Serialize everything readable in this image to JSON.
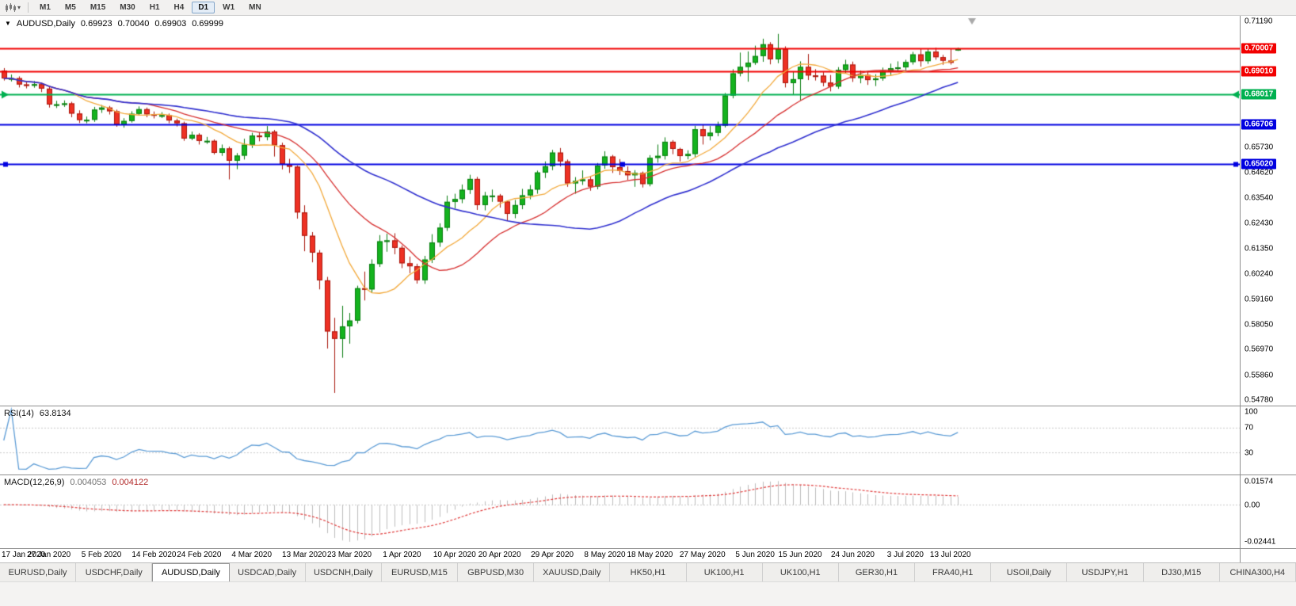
{
  "toolbar": {
    "timeframes": [
      "M1",
      "M5",
      "M15",
      "M30",
      "H1",
      "H4",
      "D1",
      "W1",
      "MN"
    ],
    "active_timeframe": "D1",
    "caret_glyph": "▾"
  },
  "chart_header": {
    "marker_glyph": "▼",
    "symbol": "AUDUSD,Daily",
    "open": "0.69923",
    "high": "0.70040",
    "low": "0.69903",
    "close": "0.69999"
  },
  "rsi": {
    "name": "RSI(14)",
    "value": "63.8134",
    "axis_labels": [
      "100",
      "70",
      "30"
    ],
    "axis_values": [
      100,
      70,
      30
    ]
  },
  "macd": {
    "name": "MACD(12,26,9)",
    "value_main": "0.004053",
    "value_signal": "0.004122",
    "axis_top": "0.01574",
    "axis_zero": "0.00",
    "axis_bottom": "-0.02441"
  },
  "tabs": {
    "items": [
      "EURUSD,Daily",
      "USDCHF,Daily",
      "AUDUSD,Daily",
      "USDCAD,Daily",
      "USDCNH,Daily",
      "EURUSD,M15",
      "GBPUSD,M30",
      "XAUUSD,Daily",
      "HK50,H1",
      "UK100,H1",
      "UK100,H1",
      "GER30,H1",
      "FRA40,H1",
      "USOil,Daily",
      "USDJPY,H1",
      "DJ30,M15",
      "CHINA300,H4"
    ],
    "active_index": 2,
    "active": "AUDUSD,Daily"
  },
  "chart_data": {
    "type": "candlestick",
    "title": "AUDUSD,Daily",
    "timeframe": "D1",
    "ylim": [
      0.5455,
      0.7142
    ],
    "plot_right_fraction": 0.775,
    "price_ticks": [
      {
        "price": 0.7119,
        "label": "0.71190"
      },
      {
        "price": 0.6573,
        "label": "0.65730"
      },
      {
        "price": 0.6462,
        "label": "0.64620"
      },
      {
        "price": 0.6354,
        "label": "0.63540"
      },
      {
        "price": 0.6243,
        "label": "0.62430"
      },
      {
        "price": 0.6135,
        "label": "0.61350"
      },
      {
        "price": 0.6024,
        "label": "0.60240"
      },
      {
        "price": 0.5916,
        "label": "0.59160"
      },
      {
        "price": 0.5805,
        "label": "0.58050"
      },
      {
        "price": 0.5697,
        "label": "0.56970"
      },
      {
        "price": 0.5586,
        "label": "0.55860"
      },
      {
        "price": 0.5478,
        "label": "0.54780"
      }
    ],
    "hlines": [
      {
        "price": 0.70007,
        "label": "0.70007",
        "color": "#f20000",
        "handles": "none"
      },
      {
        "price": 0.6901,
        "label": "0.69010",
        "color": "#f20000",
        "handles": "none"
      },
      {
        "price": 0.68017,
        "label": "0.68017",
        "color": "#00b050",
        "handles": "arrows"
      },
      {
        "price": 0.66706,
        "label": "0.66706",
        "color": "#0000e0",
        "handles": "none"
      },
      {
        "price": 0.6502,
        "label": "0.65020",
        "color": "#0000e0",
        "handles": "squares"
      }
    ],
    "x_ticks": [
      [
        0,
        "17 Jan 2020"
      ],
      [
        6,
        "27 Jan 2020"
      ],
      [
        13,
        "5 Feb 2020"
      ],
      [
        20,
        "14 Feb 2020"
      ],
      [
        26,
        "24 Feb 2020"
      ],
      [
        33,
        "4 Mar 2020"
      ],
      [
        40,
        "13 Mar 2020"
      ],
      [
        46,
        "23 Mar 2020"
      ],
      [
        53,
        "1 Apr 2020"
      ],
      [
        60,
        "10 Apr 2020"
      ],
      [
        66,
        "20 Apr 2020"
      ],
      [
        73,
        "29 Apr 2020"
      ],
      [
        80,
        "8 May 2020"
      ],
      [
        86,
        "18 May 2020"
      ],
      [
        93,
        "27 May 2020"
      ],
      [
        100,
        "5 Jun 2020"
      ],
      [
        106,
        "15 Jun 2020"
      ],
      [
        113,
        "24 Jun 2020"
      ],
      [
        120,
        "3 Jul 2020"
      ],
      [
        126,
        "13 Jul 2020"
      ]
    ],
    "up_color": "#14b31e",
    "up_stroke": "#0a7d10",
    "down_color": "#ee3124",
    "down_stroke": "#a8170d",
    "moving_averages": [
      {
        "period": 10,
        "color": "#f2a93b"
      },
      {
        "period": 20,
        "color": "#d62f2f"
      },
      {
        "period": 40,
        "color": "#3030cf"
      }
    ],
    "rsi": {
      "period": 14,
      "color": "#5b9bd5",
      "levels": [
        70,
        30
      ],
      "range": [
        0,
        100
      ]
    },
    "macd": {
      "fast": 12,
      "slow": 26,
      "signal": 9,
      "ylim": [
        -0.02441,
        0.01574
      ],
      "histogram_color": "#bdbdbd",
      "signal_color": "#e03c3c"
    },
    "candles": [
      [
        0.6905,
        0.6916,
        0.6862,
        0.6871
      ],
      [
        0.6871,
        0.6888,
        0.6858,
        0.6872
      ],
      [
        0.6872,
        0.688,
        0.6832,
        0.6845
      ],
      [
        0.6845,
        0.6858,
        0.6828,
        0.6843
      ],
      [
        0.6843,
        0.686,
        0.6831,
        0.6846
      ],
      [
        0.6846,
        0.6852,
        0.6812,
        0.6827
      ],
      [
        0.6827,
        0.6834,
        0.6745,
        0.6758
      ],
      [
        0.6758,
        0.6774,
        0.6743,
        0.6759
      ],
      [
        0.6759,
        0.6776,
        0.6748,
        0.6763
      ],
      [
        0.6763,
        0.677,
        0.6703,
        0.6719
      ],
      [
        0.6719,
        0.6733,
        0.6678,
        0.6691
      ],
      [
        0.6691,
        0.6706,
        0.6677,
        0.6692
      ],
      [
        0.6692,
        0.6748,
        0.6683,
        0.6736
      ],
      [
        0.6736,
        0.6756,
        0.6722,
        0.6745
      ],
      [
        0.6745,
        0.6752,
        0.6715,
        0.6729
      ],
      [
        0.6729,
        0.6736,
        0.6662,
        0.6671
      ],
      [
        0.6671,
        0.6699,
        0.6658,
        0.6687
      ],
      [
        0.6687,
        0.6729,
        0.668,
        0.6718
      ],
      [
        0.6718,
        0.675,
        0.6711,
        0.6738
      ],
      [
        0.6738,
        0.6745,
        0.6703,
        0.6716
      ],
      [
        0.6716,
        0.6728,
        0.6698,
        0.6712
      ],
      [
        0.6712,
        0.6725,
        0.67,
        0.6712
      ],
      [
        0.6712,
        0.6719,
        0.6677,
        0.6689
      ],
      [
        0.6689,
        0.6697,
        0.6663,
        0.6677
      ],
      [
        0.6677,
        0.6684,
        0.6601,
        0.6611
      ],
      [
        0.6611,
        0.6641,
        0.6604,
        0.6627
      ],
      [
        0.6627,
        0.6634,
        0.6585,
        0.6601
      ],
      [
        0.6601,
        0.6618,
        0.6588,
        0.6601
      ],
      [
        0.6601,
        0.6607,
        0.6542,
        0.6549
      ],
      [
        0.6549,
        0.6585,
        0.6536,
        0.6568
      ],
      [
        0.6568,
        0.6576,
        0.6434,
        0.6515
      ],
      [
        0.6515,
        0.6548,
        0.6478,
        0.6537
      ],
      [
        0.6537,
        0.661,
        0.652,
        0.6584
      ],
      [
        0.6584,
        0.6636,
        0.657,
        0.6624
      ],
      [
        0.6624,
        0.6639,
        0.6599,
        0.6617
      ],
      [
        0.6617,
        0.6665,
        0.6603,
        0.6641
      ],
      [
        0.6641,
        0.6648,
        0.6533,
        0.6582
      ],
      [
        0.6582,
        0.6593,
        0.6477,
        0.65
      ],
      [
        0.65,
        0.6523,
        0.6462,
        0.6489
      ],
      [
        0.6489,
        0.6494,
        0.6264,
        0.6291
      ],
      [
        0.6291,
        0.6322,
        0.6123,
        0.619
      ],
      [
        0.619,
        0.6206,
        0.6075,
        0.6117
      ],
      [
        0.6117,
        0.6128,
        0.5958,
        0.5997
      ],
      [
        0.5997,
        0.6012,
        0.5702,
        0.5776
      ],
      [
        0.5776,
        0.5835,
        0.551,
        0.5744
      ],
      [
        0.5744,
        0.5887,
        0.5662,
        0.5798
      ],
      [
        0.5798,
        0.5856,
        0.5723,
        0.5823
      ],
      [
        0.5823,
        0.5974,
        0.581,
        0.5963
      ],
      [
        0.5963,
        0.6035,
        0.591,
        0.5958
      ],
      [
        0.5958,
        0.6088,
        0.5945,
        0.6068
      ],
      [
        0.6068,
        0.6193,
        0.6055,
        0.6166
      ],
      [
        0.6166,
        0.6199,
        0.6121,
        0.617
      ],
      [
        0.617,
        0.6201,
        0.611,
        0.6138
      ],
      [
        0.6138,
        0.6148,
        0.605,
        0.6071
      ],
      [
        0.6071,
        0.61,
        0.6028,
        0.6058
      ],
      [
        0.6058,
        0.6069,
        0.5983,
        0.5998
      ],
      [
        0.5998,
        0.6103,
        0.5982,
        0.6087
      ],
      [
        0.6087,
        0.6197,
        0.6072,
        0.6161
      ],
      [
        0.6161,
        0.6244,
        0.6142,
        0.6225
      ],
      [
        0.6225,
        0.6364,
        0.6211,
        0.6337
      ],
      [
        0.6337,
        0.6372,
        0.6308,
        0.6349
      ],
      [
        0.6349,
        0.6412,
        0.6331,
        0.6389
      ],
      [
        0.6389,
        0.6454,
        0.6371,
        0.6436
      ],
      [
        0.6436,
        0.6445,
        0.6302,
        0.6323
      ],
      [
        0.6323,
        0.638,
        0.63,
        0.6364
      ],
      [
        0.6364,
        0.639,
        0.6337,
        0.6364
      ],
      [
        0.6364,
        0.6371,
        0.6312,
        0.6338
      ],
      [
        0.6338,
        0.6343,
        0.6254,
        0.6285
      ],
      [
        0.6285,
        0.6345,
        0.6266,
        0.6323
      ],
      [
        0.6323,
        0.6393,
        0.6305,
        0.6365
      ],
      [
        0.6365,
        0.641,
        0.6348,
        0.639
      ],
      [
        0.639,
        0.6472,
        0.6372,
        0.6464
      ],
      [
        0.6464,
        0.6512,
        0.644,
        0.6491
      ],
      [
        0.6491,
        0.6562,
        0.6474,
        0.655
      ],
      [
        0.655,
        0.657,
        0.649,
        0.6512
      ],
      [
        0.6512,
        0.652,
        0.6402,
        0.6417
      ],
      [
        0.6417,
        0.6444,
        0.6372,
        0.6427
      ],
      [
        0.6427,
        0.6473,
        0.641,
        0.6434
      ],
      [
        0.6434,
        0.6448,
        0.6385,
        0.6403
      ],
      [
        0.6403,
        0.6505,
        0.6391,
        0.6494
      ],
      [
        0.6494,
        0.6556,
        0.648,
        0.6533
      ],
      [
        0.6533,
        0.654,
        0.6462,
        0.6487
      ],
      [
        0.6487,
        0.6522,
        0.6453,
        0.647
      ],
      [
        0.647,
        0.649,
        0.6432,
        0.6452
      ],
      [
        0.6452,
        0.6474,
        0.6402,
        0.6462
      ],
      [
        0.6462,
        0.6468,
        0.6399,
        0.6414
      ],
      [
        0.6414,
        0.6539,
        0.6404,
        0.6527
      ],
      [
        0.6527,
        0.6585,
        0.6506,
        0.6536
      ],
      [
        0.6536,
        0.6616,
        0.652,
        0.6597
      ],
      [
        0.6597,
        0.6604,
        0.6543,
        0.6566
      ],
      [
        0.6566,
        0.6571,
        0.6511,
        0.6535
      ],
      [
        0.6535,
        0.656,
        0.6521,
        0.6544
      ],
      [
        0.6544,
        0.6666,
        0.6531,
        0.6651
      ],
      [
        0.6651,
        0.6672,
        0.6585,
        0.6621
      ],
      [
        0.6621,
        0.6665,
        0.6603,
        0.6636
      ],
      [
        0.6636,
        0.6684,
        0.6621,
        0.6667
      ],
      [
        0.6667,
        0.6808,
        0.6659,
        0.6797
      ],
      [
        0.6797,
        0.6911,
        0.6785,
        0.6893
      ],
      [
        0.6893,
        0.6983,
        0.688,
        0.6921
      ],
      [
        0.6921,
        0.6988,
        0.6857,
        0.6939
      ],
      [
        0.6939,
        0.7013,
        0.693,
        0.6968
      ],
      [
        0.6968,
        0.7043,
        0.6943,
        0.7019
      ],
      [
        0.7019,
        0.7028,
        0.6932,
        0.6954
      ],
      [
        0.6954,
        0.7064,
        0.6937,
        0.6999
      ],
      [
        0.6999,
        0.701,
        0.6832,
        0.6851
      ],
      [
        0.6851,
        0.6902,
        0.6799,
        0.6868
      ],
      [
        0.6868,
        0.6945,
        0.6776,
        0.6921
      ],
      [
        0.6921,
        0.6977,
        0.6864,
        0.6884
      ],
      [
        0.6884,
        0.6911,
        0.6862,
        0.6883
      ],
      [
        0.6883,
        0.6898,
        0.6837,
        0.6853
      ],
      [
        0.6853,
        0.6886,
        0.6815,
        0.6836
      ],
      [
        0.6836,
        0.692,
        0.6826,
        0.6908
      ],
      [
        0.6908,
        0.6952,
        0.6893,
        0.6931
      ],
      [
        0.6931,
        0.6944,
        0.6856,
        0.6873
      ],
      [
        0.6873,
        0.6905,
        0.685,
        0.6886
      ],
      [
        0.6886,
        0.6899,
        0.6843,
        0.6864
      ],
      [
        0.6864,
        0.6889,
        0.6838,
        0.6871
      ],
      [
        0.6871,
        0.6918,
        0.6861,
        0.6903
      ],
      [
        0.6903,
        0.6935,
        0.6883,
        0.6915
      ],
      [
        0.6915,
        0.6945,
        0.6901,
        0.6919
      ],
      [
        0.6919,
        0.6952,
        0.6907,
        0.6942
      ],
      [
        0.6942,
        0.6986,
        0.6931,
        0.6975
      ],
      [
        0.6975,
        0.6998,
        0.6922,
        0.6946
      ],
      [
        0.6946,
        0.6999,
        0.6934,
        0.6987
      ],
      [
        0.6987,
        0.7004,
        0.6952,
        0.6963
      ],
      [
        0.6963,
        0.6973,
        0.693,
        0.6948
      ],
      [
        0.6948,
        0.6998,
        0.6931,
        0.6939
      ],
      [
        0.69923,
        0.7004,
        0.69903,
        0.69999
      ]
    ]
  }
}
